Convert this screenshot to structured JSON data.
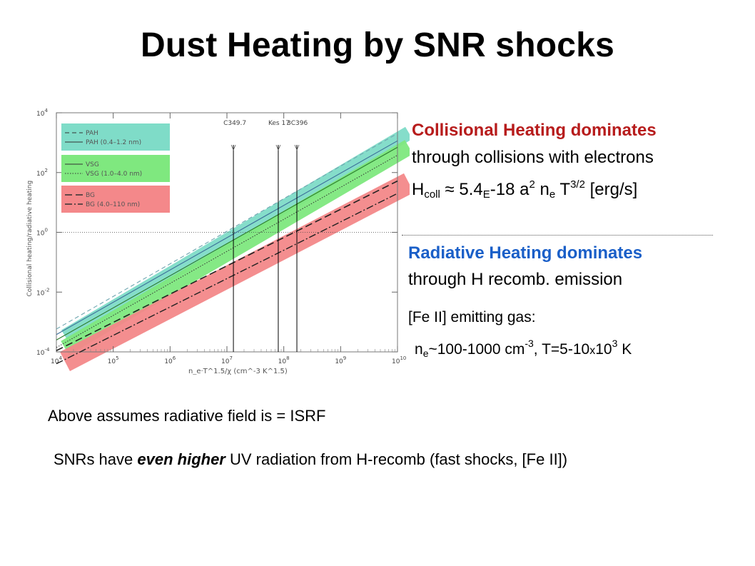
{
  "title": "Dust Heating by SNR shocks",
  "collisional": {
    "heading": "Collisional Heating dominates",
    "line": "through collisions with electrons",
    "formula": {
      "h": "H",
      "coll": "coll",
      "mid": " ≈ 5.4",
      "e": "E",
      "rest": "-18 a",
      "sq": "2",
      "n": " n",
      "ne": "e",
      "t": " T",
      "tpow": "3/2",
      "unit": " [erg/s]"
    }
  },
  "radiative": {
    "heading": "Radiative Heating dominates",
    "line": "through H recomb. emission"
  },
  "gas": {
    "label": "[Fe II] emitting gas:",
    "n": "n",
    "nsub": "e",
    "range": "~100-1000 cm",
    "exp": "-3",
    "temp": ", T=5-10",
    "x": "x",
    "ten": "10",
    "tenexp": "3",
    "unit": " K"
  },
  "note1": "Above assumes radiative field is = ISRF",
  "note2": {
    "pre": "SNRs have ",
    "em": "even higher",
    "post": " UV radiation from H-recomb (fast shocks, [Fe II])"
  },
  "chart_data": {
    "type": "line",
    "xscale": "log",
    "yscale": "log",
    "xlim": [
      10000,
      10000000000
    ],
    "ylim": [
      0.0001,
      10000
    ],
    "x_ticks": [
      "10^4",
      "10^5",
      "10^6",
      "10^7",
      "10^8",
      "10^9",
      "10^10"
    ],
    "y_ticks": [
      "10^-4",
      "10^-2",
      "10^0",
      "10^2",
      "10^4"
    ],
    "xlabel": "n_e·T^1.5/χ (cm^-3 K^1.5)",
    "ylabel": "Collisional heating/radiative heating",
    "reference_line_y": 1,
    "series": [
      {
        "name": "PAH",
        "color": "#7fdcc8",
        "x": [
          10000,
          10000000000
        ],
        "y": [
          0.00058,
          2030
        ]
      },
      {
        "name": "PAH (0.4–1.2 nm)",
        "color": "#7fdcc8",
        "x": [
          10000,
          10000000000
        ],
        "y": [
          0.00038,
          1150
        ]
      },
      {
        "name": "VSG",
        "color": "#7fe87f",
        "x": [
          10000,
          10000000000
        ],
        "y": [
          0.00025,
          700
        ]
      },
      {
        "name": "VSG (1.0–4.0 nm)",
        "color": "#7fe87f",
        "x": [
          10000,
          10000000000
        ],
        "y": [
          0.00014,
          380
        ]
      },
      {
        "name": "BG",
        "color": "#f4888a",
        "x": [
          10000,
          10000000000
        ],
        "y": [
          0.00011,
          52
        ]
      },
      {
        "name": "BG (4.0–110 nm)",
        "color": "#f4888a",
        "x": [
          10000,
          10000000000
        ],
        "y": [
          4e-05,
          20
        ]
      }
    ],
    "markers": [
      {
        "label": "C349.7",
        "x": 13000000
      },
      {
        "label": "Kes 17",
        "x": 80000000
      },
      {
        "label": "3C396",
        "x": 170000000
      }
    ]
  }
}
